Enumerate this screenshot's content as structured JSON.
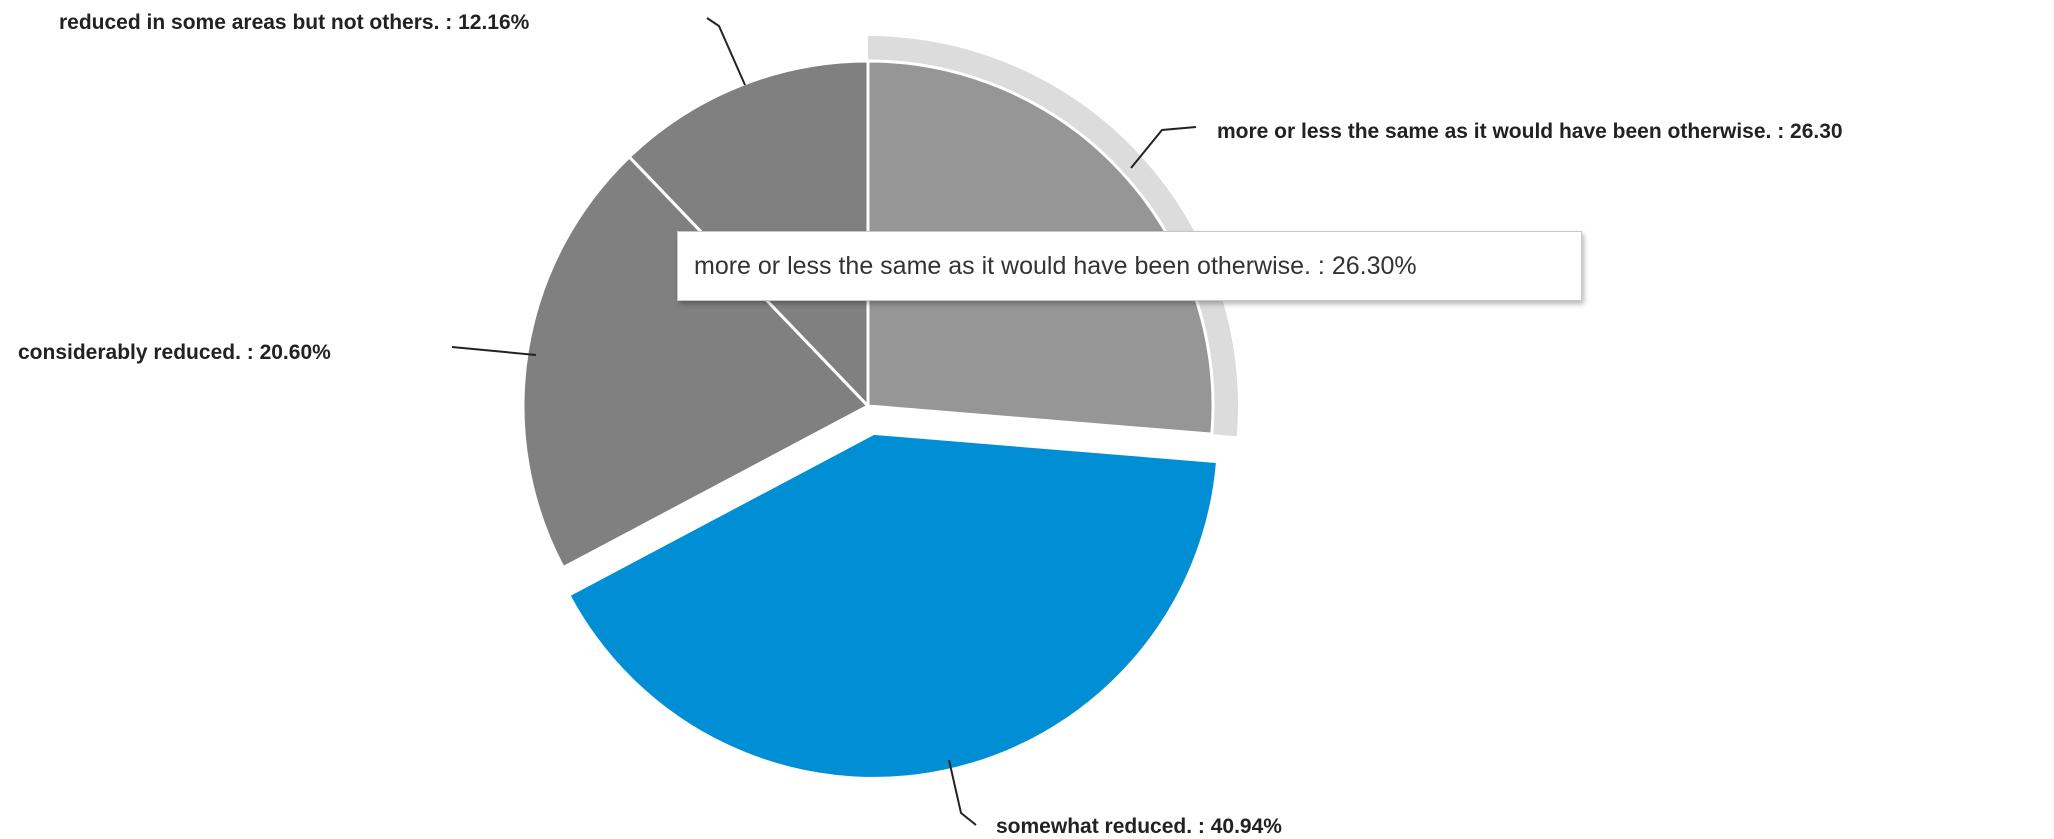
{
  "chart_data": {
    "type": "pie",
    "slices": [
      {
        "label": "more or less the same as it would have been otherwise.",
        "value": 26.3,
        "color": "#969696",
        "exploded": false,
        "hovered": true
      },
      {
        "label": "somewhat reduced.",
        "value": 40.94,
        "color": "#008fd5",
        "exploded": true,
        "hovered": false
      },
      {
        "label": "considerably reduced.",
        "value": 20.6,
        "color": "#808080",
        "exploded": false,
        "hovered": false
      },
      {
        "label": "reduced in some areas but not others.",
        "value": 12.16,
        "color": "#808080",
        "exploded": false,
        "hovered": false
      }
    ],
    "data_labels": [
      "more or less the same as it would have been otherwise. : 26.30",
      "somewhat reduced. : 40.94%",
      "considerably reduced. : 20.60%",
      "reduced in some areas but not others. : 12.16%"
    ],
    "hover_highlight_color": "#dcdcdc",
    "legend": "none"
  },
  "tooltip": {
    "text": "more or less the same as it would have been otherwise. : 26.30%"
  }
}
